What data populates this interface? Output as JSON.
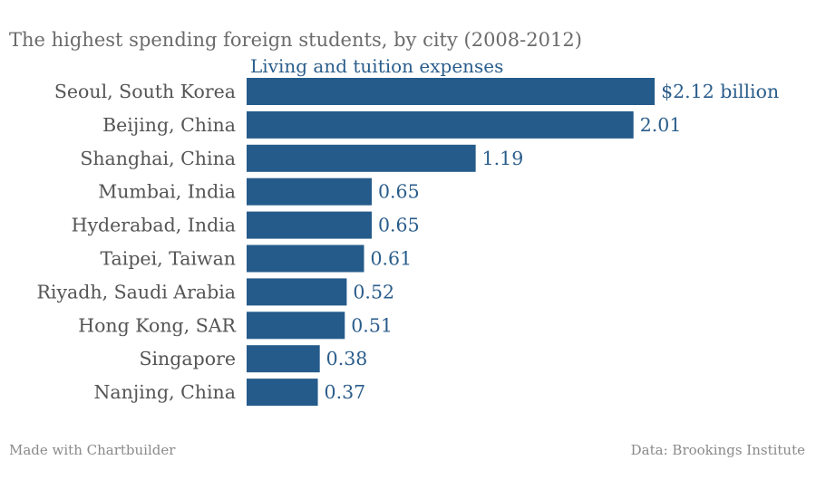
{
  "chart_data": {
    "type": "bar",
    "orientation": "horizontal",
    "title": "The highest spending foreign students, by city (2008-2012)",
    "subtitle": "Living and tuition expenses",
    "categories": [
      "Seoul, South Korea",
      "Beijing, China",
      "Shanghai, China",
      "Mumbai, India",
      "Hyderabad, India",
      "Taipei, Taiwan",
      "Riyadh, Saudi Arabia",
      "Hong Kong, SAR",
      "Singapore",
      "Nanjing, China"
    ],
    "values": [
      2.12,
      2.01,
      1.19,
      0.65,
      0.65,
      0.61,
      0.52,
      0.51,
      0.38,
      0.37
    ],
    "value_labels": [
      "$2.12 billion",
      "2.01",
      "1.19",
      "0.65",
      "0.65",
      "0.61",
      "0.52",
      "0.51",
      "0.38",
      "0.37"
    ],
    "bar_color": "#255b8a",
    "grid": false
  },
  "footer": {
    "left": "Made with Chartbuilder",
    "right": "Data: Brookings Institute"
  }
}
